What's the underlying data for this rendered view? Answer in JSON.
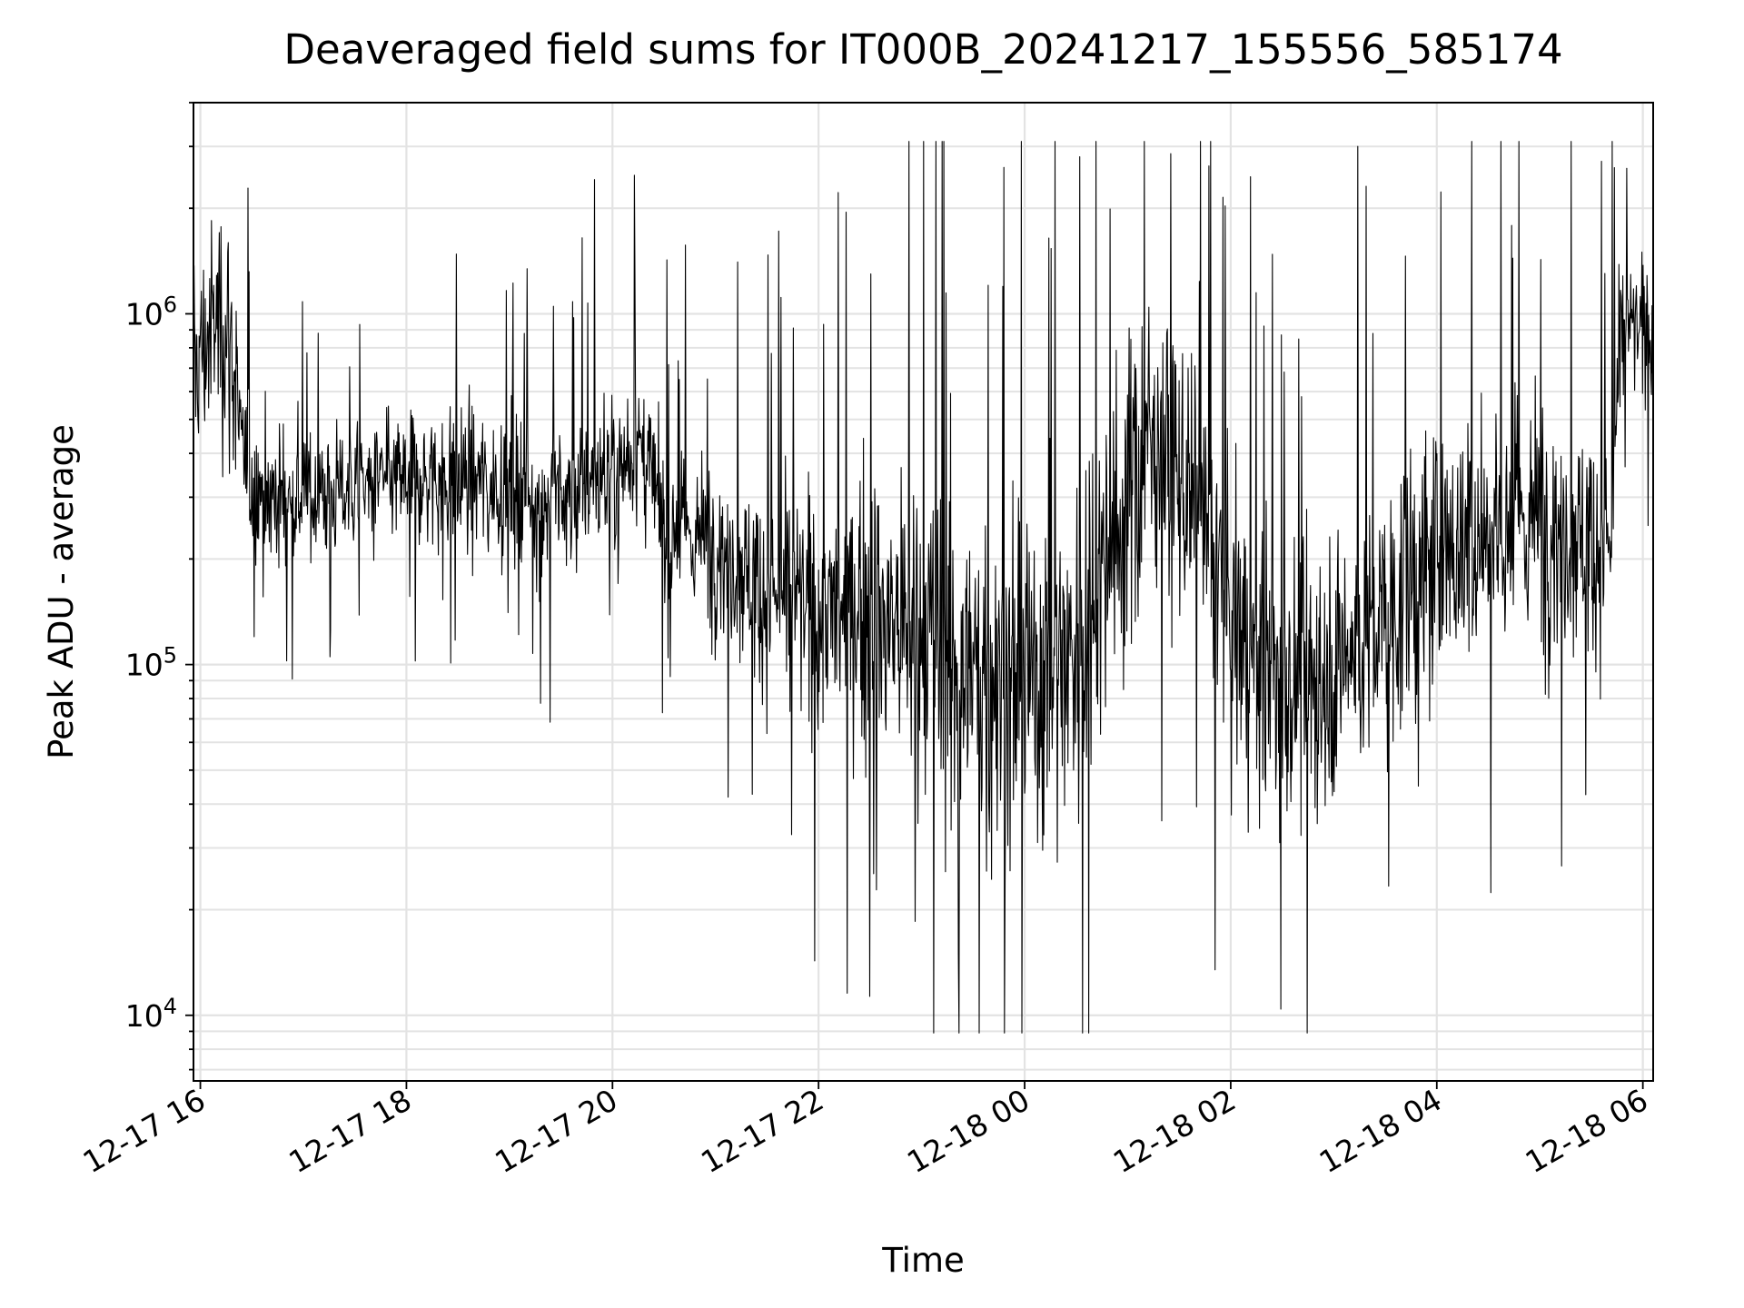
{
  "chart_data": {
    "type": "line",
    "title": "Deaveraged field sums for IT000B_20241217_155556_585174",
    "xlabel": "Time",
    "ylabel": "Peak ADU - average",
    "x_scale": "time",
    "y_scale": "log",
    "xlim": [
      "2024-12-17 15:56",
      "2024-12-18 06:06"
    ],
    "ylim": [
      6500,
      4000000
    ],
    "x_ticks": [
      {
        "value": "2024-12-17 16:00",
        "label": "12-17 16"
      },
      {
        "value": "2024-12-17 18:00",
        "label": "12-17 18"
      },
      {
        "value": "2024-12-17 20:00",
        "label": "12-17 20"
      },
      {
        "value": "2024-12-17 22:00",
        "label": "12-17 22"
      },
      {
        "value": "2024-12-18 00:00",
        "label": "12-18 00"
      },
      {
        "value": "2024-12-18 02:00",
        "label": "12-18 02"
      },
      {
        "value": "2024-12-18 04:00",
        "label": "12-18 04"
      },
      {
        "value": "2024-12-18 06:00",
        "label": "12-18 06"
      }
    ],
    "y_ticks": [
      {
        "value": 10000,
        "base": "10",
        "exp": "4"
      },
      {
        "value": 100000,
        "base": "10",
        "exp": "5"
      },
      {
        "value": 1000000,
        "base": "10",
        "exp": "6"
      }
    ],
    "grid": true,
    "line_color": "#000000",
    "series": [
      {
        "x": [
          "2024-12-17 15:56",
          "2024-12-17 16:05",
          "2024-12-17 16:12",
          "2024-12-17 16:18",
          "2024-12-17 16:24",
          "2024-12-17 16:30",
          "2024-12-17 16:40",
          "2024-12-17 17:00",
          "2024-12-17 17:30",
          "2024-12-17 18:00",
          "2024-12-17 18:30",
          "2024-12-17 19:00",
          "2024-12-17 19:30",
          "2024-12-17 20:00",
          "2024-12-17 20:15",
          "2024-12-17 20:30",
          "2024-12-17 21:00",
          "2024-12-17 21:30",
          "2024-12-17 22:00",
          "2024-12-17 22:30",
          "2024-12-17 23:00",
          "2024-12-17 23:30",
          "2024-12-18 00:00",
          "2024-12-18 00:30",
          "2024-12-18 01:00",
          "2024-12-18 01:15",
          "2024-12-18 01:30",
          "2024-12-18 02:00",
          "2024-12-18 02:30",
          "2024-12-18 03:00",
          "2024-12-18 03:30",
          "2024-12-18 04:00",
          "2024-12-18 04:30",
          "2024-12-18 05:00",
          "2024-12-18 05:30",
          "2024-12-18 05:42",
          "2024-12-18 05:48",
          "2024-12-18 06:06"
        ],
        "y": [
          700000,
          850000,
          1000000,
          800000,
          380000,
          330000,
          300000,
          300000,
          320000,
          340000,
          340000,
          320000,
          290000,
          360000,
          420000,
          250000,
          220000,
          160000,
          140000,
          140000,
          120000,
          90000,
          90000,
          110000,
          280000,
          460000,
          330000,
          130000,
          80000,
          100000,
          130000,
          200000,
          250000,
          260000,
          230000,
          220000,
          900000,
          900000
        ],
        "spread": [
          0.45,
          0.4,
          0.5,
          0.5,
          0.35,
          0.3,
          0.3,
          0.25,
          0.25,
          0.25,
          0.3,
          0.3,
          0.3,
          0.35,
          0.3,
          0.3,
          0.35,
          0.4,
          0.45,
          0.55,
          0.65,
          0.75,
          0.75,
          0.7,
          0.65,
          0.55,
          0.55,
          0.55,
          0.6,
          0.55,
          0.55,
          0.55,
          0.55,
          0.55,
          0.45,
          0.45,
          0.25,
          0.25
        ]
      }
    ]
  }
}
